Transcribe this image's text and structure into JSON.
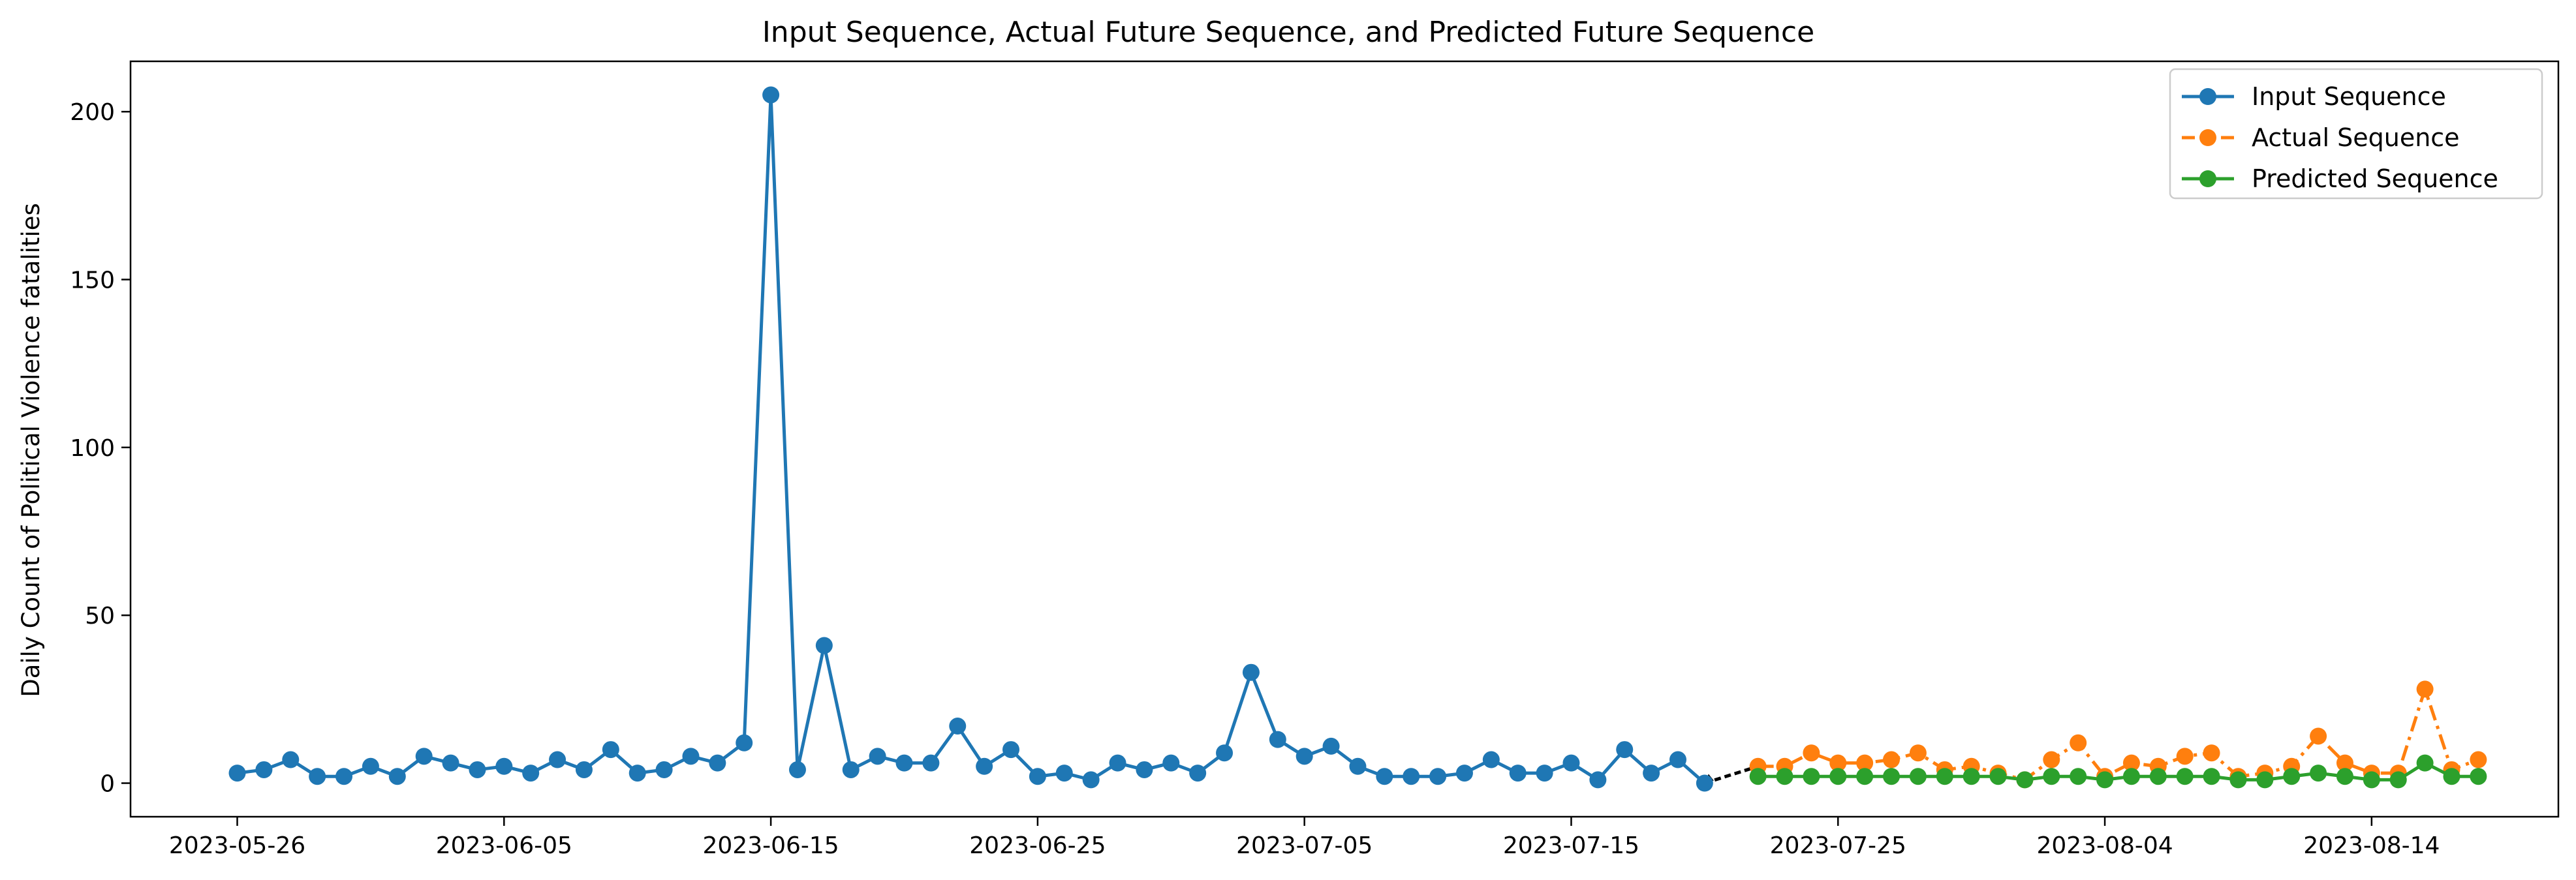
{
  "chart_data": {
    "type": "line",
    "title": "Input Sequence, Actual Future Sequence, and Predicted Future Sequence",
    "xlabel": "",
    "ylabel": "Daily Count of Political Violence fatalities",
    "x_start": "2023-05-26",
    "xlim": [
      "2023-05-22",
      "2023-08-21"
    ],
    "ylim": [
      -10,
      215
    ],
    "x_ticks": [
      "2023-05-26",
      "2023-06-05",
      "2023-06-15",
      "2023-06-25",
      "2023-07-05",
      "2023-07-15",
      "2023-07-25",
      "2023-08-04",
      "2023-08-14"
    ],
    "y_ticks": [
      0,
      50,
      100,
      150,
      200
    ],
    "grid": false,
    "legend_position": "top-right",
    "colors": {
      "input": "#1f77b4",
      "actual": "#ff7f0e",
      "predicted": "#2ca02c",
      "connector": "#000000"
    },
    "series": [
      {
        "name": "Input Sequence",
        "style": "solid",
        "start": "2023-05-26",
        "values": [
          3,
          4,
          7,
          2,
          2,
          5,
          2,
          8,
          6,
          4,
          5,
          3,
          7,
          4,
          10,
          3,
          4,
          8,
          6,
          12,
          205,
          4,
          41,
          4,
          8,
          6,
          6,
          17,
          5,
          10,
          2,
          3,
          1,
          6,
          4,
          6,
          3,
          9,
          33,
          13,
          8,
          11,
          5,
          2,
          2,
          2,
          3,
          7,
          3,
          3,
          6,
          1,
          10,
          3,
          7,
          0
        ]
      },
      {
        "name": "Actual Sequence",
        "style": "dashdot",
        "start": "2023-07-22",
        "values": [
          5,
          5,
          9,
          6,
          6,
          7,
          9,
          4,
          5,
          3,
          1,
          7,
          12,
          2,
          6,
          5,
          8,
          9,
          2,
          3,
          5,
          14,
          6,
          3,
          3,
          28,
          4,
          7
        ]
      },
      {
        "name": "Predicted Sequence",
        "style": "solid",
        "start": "2023-07-22",
        "values": [
          2,
          2,
          2,
          2,
          2,
          2,
          2,
          2,
          2,
          2,
          1,
          2,
          2,
          1,
          2,
          2,
          2,
          2,
          1,
          1,
          2,
          3,
          2,
          1,
          1,
          6,
          2,
          2
        ]
      }
    ]
  }
}
